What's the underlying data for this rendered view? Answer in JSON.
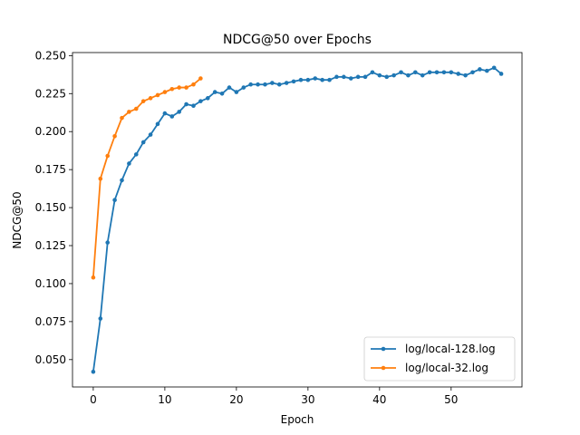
{
  "chart_data": {
    "type": "line",
    "title": "NDCG@50 over Epochs",
    "xlabel": "Epoch",
    "ylabel": "NDCG@50",
    "xlim": [
      -2.9,
      59.9
    ],
    "ylim": [
      0.032,
      0.252
    ],
    "xticks": [
      0,
      10,
      20,
      30,
      40,
      50
    ],
    "yticks": [
      0.05,
      0.075,
      0.1,
      0.125,
      0.15,
      0.175,
      0.2,
      0.225,
      0.25
    ],
    "ytick_labels": [
      "0.050",
      "0.075",
      "0.100",
      "0.125",
      "0.150",
      "0.175",
      "0.200",
      "0.225",
      "0.250"
    ],
    "grid": false,
    "legend_position": "lower-right",
    "series": [
      {
        "name": "log/local-128.log",
        "color": "#1f77b4",
        "marker": "circle",
        "x": [
          0,
          1,
          2,
          3,
          4,
          5,
          6,
          7,
          8,
          9,
          10,
          11,
          12,
          13,
          14,
          15,
          16,
          17,
          18,
          19,
          20,
          21,
          22,
          23,
          24,
          25,
          26,
          27,
          28,
          29,
          30,
          31,
          32,
          33,
          34,
          35,
          36,
          37,
          38,
          39,
          40,
          41,
          42,
          43,
          44,
          45,
          46,
          47,
          48,
          49,
          50,
          51,
          52,
          53,
          54,
          55,
          56,
          57
        ],
        "y": [
          0.042,
          0.077,
          0.127,
          0.155,
          0.168,
          0.179,
          0.185,
          0.193,
          0.198,
          0.205,
          0.212,
          0.21,
          0.213,
          0.218,
          0.217,
          0.22,
          0.222,
          0.226,
          0.225,
          0.229,
          0.226,
          0.229,
          0.231,
          0.231,
          0.231,
          0.232,
          0.231,
          0.232,
          0.233,
          0.234,
          0.234,
          0.235,
          0.234,
          0.234,
          0.236,
          0.236,
          0.235,
          0.236,
          0.236,
          0.239,
          0.237,
          0.236,
          0.237,
          0.239,
          0.237,
          0.239,
          0.237,
          0.239,
          0.239,
          0.239,
          0.239,
          0.238,
          0.237,
          0.239,
          0.241,
          0.24,
          0.242,
          0.238
        ]
      },
      {
        "name": "log/local-32.log",
        "color": "#ff7f0e",
        "marker": "circle",
        "x": [
          0,
          1,
          2,
          3,
          4,
          5,
          6,
          7,
          8,
          9,
          10,
          11,
          12,
          13,
          14,
          15
        ],
        "y": [
          0.104,
          0.169,
          0.184,
          0.197,
          0.209,
          0.213,
          0.215,
          0.22,
          0.222,
          0.224,
          0.226,
          0.228,
          0.229,
          0.229,
          0.231,
          0.235
        ]
      }
    ]
  }
}
